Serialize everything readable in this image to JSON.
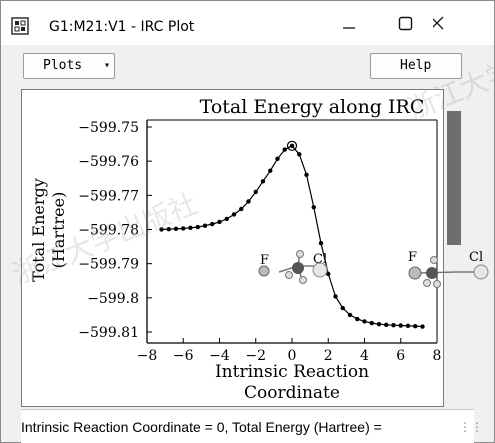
{
  "window": {
    "title": "G1:M21:V1 - IRC Plot",
    "controls": {
      "minimize_icon": "minimize-icon",
      "maximize_icon": "maximize-icon",
      "close_icon": "close-icon"
    }
  },
  "toolbar": {
    "plots_label": "Plots",
    "plots_arrow": "▾",
    "help_label": "Help"
  },
  "status_bar": {
    "text": "Intrinsic Reaction Coordinate = 0, Total Energy (Hartree) = "
  },
  "molecules": {
    "left": {
      "atom1": "F",
      "atom2": "Cl"
    },
    "right": {
      "atom1": "F",
      "atom2": "Cl"
    }
  },
  "watermark": "浙江大学出版社",
  "chart_data": {
    "type": "line",
    "title": "Total Energy along IRC",
    "xlabel": "Intrinsic Reaction Coordinate",
    "ylabel": "Total Energy (Hartree)",
    "xlim": [
      -8,
      8
    ],
    "ylim": [
      -599.81,
      -599.75
    ],
    "xticks": [
      "-8",
      "-6",
      "-4",
      "-2",
      "0",
      "2",
      "4",
      "6",
      "8"
    ],
    "yticks": [
      "-599.75",
      "-599.76",
      "-599.77",
      "-599.78",
      "-599.79",
      "-599.8",
      "-599.81"
    ],
    "highlight_x": 0,
    "x": [
      -7.2,
      -6.8,
      -6.4,
      -6.0,
      -5.6,
      -5.2,
      -4.8,
      -4.4,
      -4.0,
      -3.6,
      -3.2,
      -2.8,
      -2.4,
      -2.0,
      -1.6,
      -1.2,
      -0.8,
      -0.4,
      0,
      0.4,
      0.8,
      1.2,
      1.6,
      2.0,
      2.4,
      2.8,
      3.2,
      3.6,
      4.0,
      4.4,
      4.8,
      5.2,
      5.6,
      6.0,
      6.4,
      6.8,
      7.2
    ],
    "y": [
      -599.78,
      -599.7799,
      -599.7798,
      -599.7797,
      -599.7795,
      -599.7793,
      -599.7789,
      -599.7784,
      -599.7778,
      -599.7769,
      -599.7756,
      -599.774,
      -599.7718,
      -599.769,
      -599.7659,
      -599.7628,
      -599.7593,
      -599.7566,
      -599.7555,
      -599.758,
      -599.764,
      -599.7735,
      -599.784,
      -599.793,
      -599.7996,
      -599.803,
      -599.805,
      -599.8062,
      -599.8069,
      -599.8074,
      -599.8077,
      -599.8079,
      -599.808,
      -599.8081,
      -599.8082,
      -599.8083,
      -599.8084
    ]
  }
}
